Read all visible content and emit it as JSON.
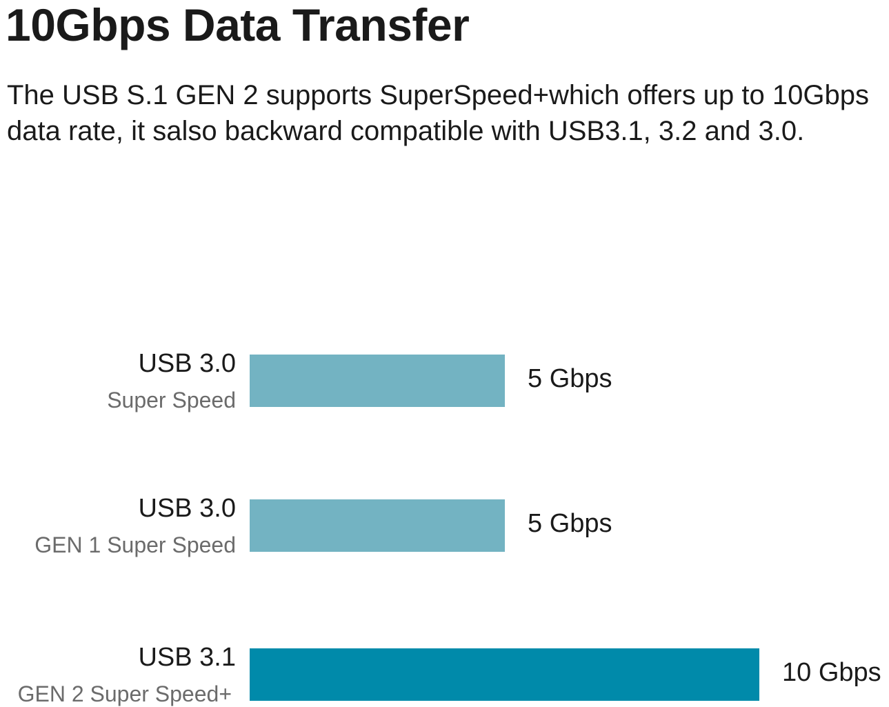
{
  "header": {
    "title": "10Gbps Data Transfer",
    "description": "The USB S.1 GEN 2 supports SuperSpeed+which offers up to 10Gbps data rate, it salso backward compatible with USB3.1, 3.2 and 3.0."
  },
  "chart_data": {
    "type": "bar",
    "orientation": "horizontal",
    "title": "",
    "xlabel": "",
    "ylabel": "",
    "xlim": [
      0,
      10
    ],
    "grid": false,
    "categories": [
      {
        "name": "USB 3.0",
        "subtitle": "Super Speed"
      },
      {
        "name": "USB 3.0",
        "subtitle": "GEN 1 Super Speed"
      },
      {
        "name": "USB 3.1",
        "subtitle": "GEN 2 Super Speed+"
      }
    ],
    "values": [
      5,
      5,
      10
    ],
    "value_labels": [
      "5 Gbps",
      "5 Gbps",
      "10 Gbps"
    ],
    "unit": "Gbps",
    "colors": [
      "#73b3c2",
      "#73b3c2",
      "#008aaa"
    ]
  }
}
